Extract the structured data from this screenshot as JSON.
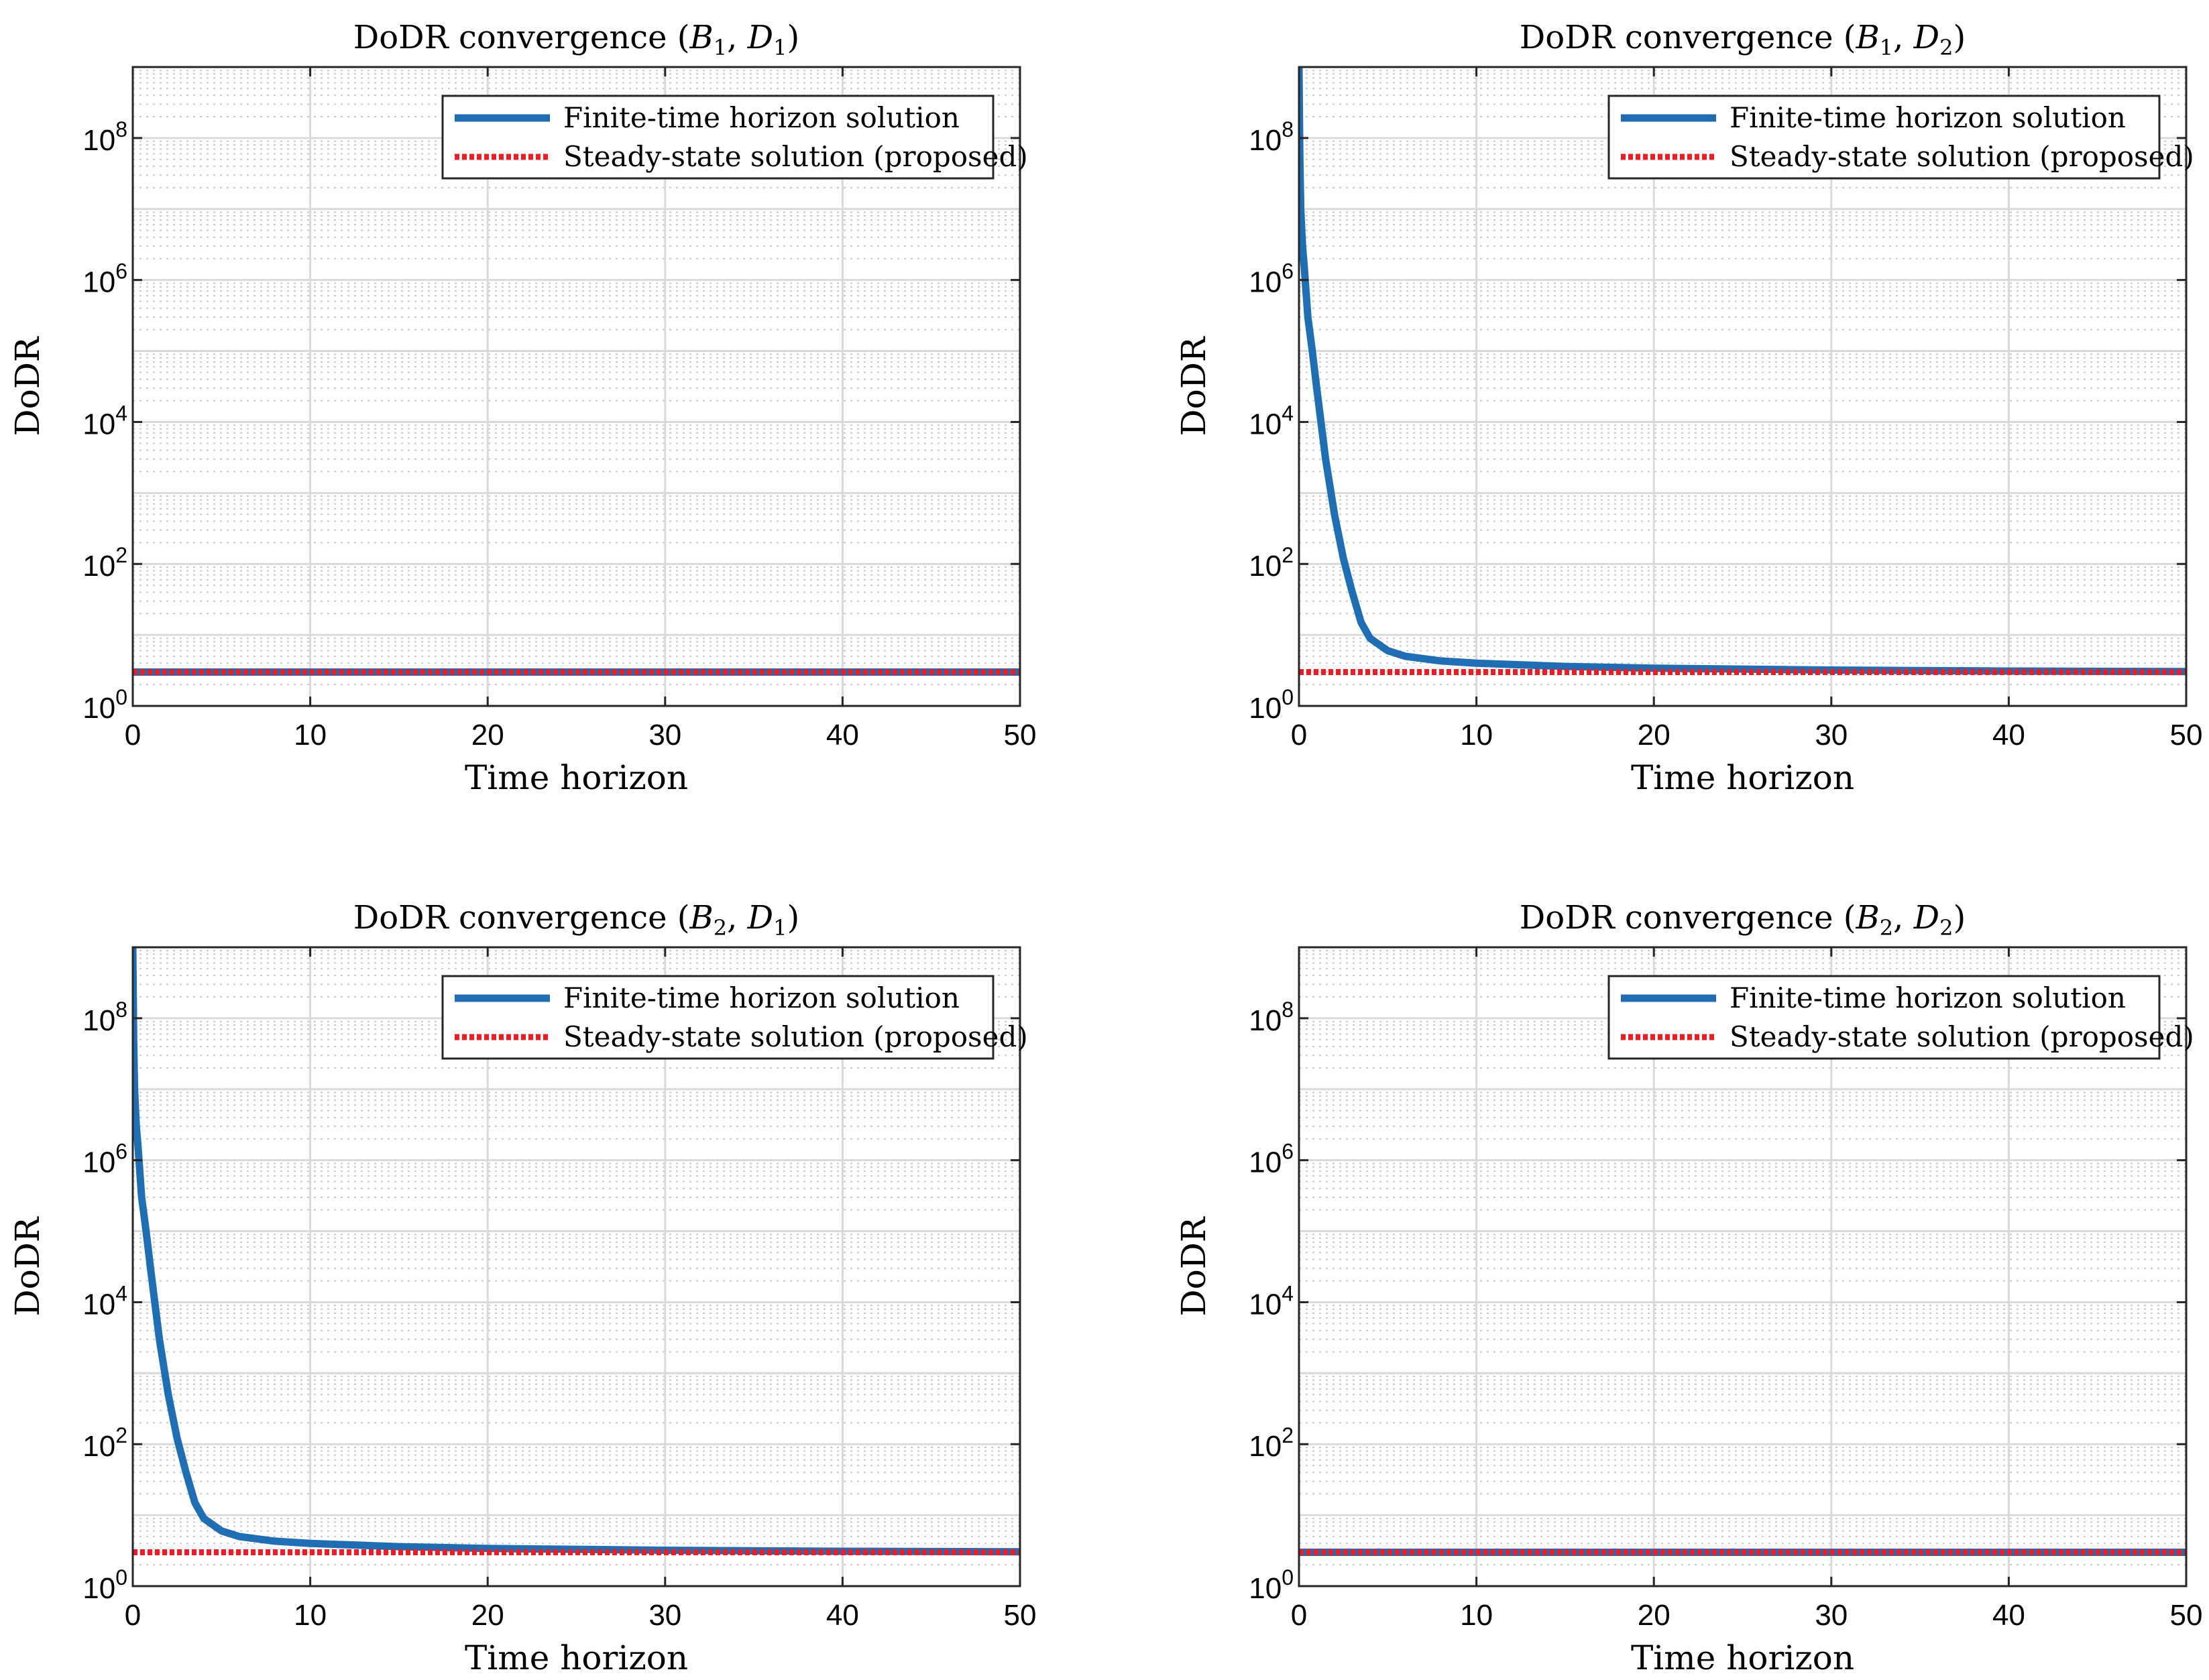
{
  "chart_data": [
    {
      "type": "line",
      "title": {
        "prefix": "DoDR convergence (",
        "b": "B",
        "b_sub": "1",
        "sep": ", ",
        "d": "D",
        "d_sub": "1",
        "suffix": ")"
      },
      "xlabel": "Time horizon",
      "ylabel": "DoDR",
      "xlim": [
        0,
        50
      ],
      "ylim": [
        1,
        1000000000.0
      ],
      "yscale": "log",
      "grid": true,
      "xticks": [
        0,
        10,
        20,
        30,
        40,
        50
      ],
      "xtick_labels": [
        "0",
        "10",
        "20",
        "30",
        "40",
        "50"
      ],
      "yticks": [
        1,
        100,
        10000,
        1000000,
        100000000
      ],
      "ytick_base": "10",
      "ytick_exponents": [
        "0",
        "2",
        "4",
        "6",
        "8"
      ],
      "legend_position": "top-right",
      "series": [
        {
          "name": "Finite-time horizon solution",
          "color": "#1f6eb4",
          "style": "solid",
          "x": [
            0,
            10,
            20,
            30,
            40,
            50
          ],
          "y": [
            3.0,
            3.0,
            3.0,
            3.0,
            3.0,
            3.0
          ]
        },
        {
          "name": "Steady-state solution (proposed)",
          "color": "#ee1c25",
          "style": "dotted",
          "x": [
            0,
            50
          ],
          "y": [
            3.0,
            3.0
          ]
        }
      ]
    },
    {
      "type": "line",
      "title": {
        "prefix": "DoDR convergence (",
        "b": "B",
        "b_sub": "1",
        "sep": ", ",
        "d": "D",
        "d_sub": "2",
        "suffix": ")"
      },
      "xlabel": "Time horizon",
      "ylabel": "DoDR",
      "xlim": [
        0,
        50
      ],
      "ylim": [
        1,
        1000000000.0
      ],
      "yscale": "log",
      "grid": true,
      "xticks": [
        0,
        10,
        20,
        30,
        40,
        50
      ],
      "xtick_labels": [
        "0",
        "10",
        "20",
        "30",
        "40",
        "50"
      ],
      "yticks": [
        1,
        100,
        10000,
        1000000,
        100000000
      ],
      "ytick_base": "10",
      "ytick_exponents": [
        "0",
        "2",
        "4",
        "6",
        "8"
      ],
      "legend_position": "top-right",
      "series": [
        {
          "name": "Finite-time horizon solution",
          "color": "#1f6eb4",
          "style": "solid",
          "x": [
            0,
            0.05,
            0.1,
            0.2,
            0.3,
            0.5,
            0.75,
            1,
            1.5,
            2,
            2.5,
            3,
            3.5,
            4,
            5,
            6,
            8,
            10,
            15,
            20,
            25,
            30,
            40,
            50
          ],
          "y": [
            1000000000.0,
            50000000.0,
            10000000.0,
            3000000.0,
            1500000.0,
            300000.0,
            100000.0,
            30000.0,
            3000,
            500,
            120,
            40,
            15,
            9,
            6,
            5,
            4.3,
            4.0,
            3.6,
            3.4,
            3.3,
            3.2,
            3.1,
            3.05
          ]
        },
        {
          "name": "Steady-state solution (proposed)",
          "color": "#ee1c25",
          "style": "dotted",
          "x": [
            0,
            50
          ],
          "y": [
            3.0,
            3.0
          ]
        }
      ]
    },
    {
      "type": "line",
      "title": {
        "prefix": "DoDR convergence (",
        "b": "B",
        "b_sub": "2",
        "sep": ", ",
        "d": "D",
        "d_sub": "1",
        "suffix": ")"
      },
      "xlabel": "Time horizon",
      "ylabel": "DoDR",
      "xlim": [
        0,
        50
      ],
      "ylim": [
        1,
        1000000000.0
      ],
      "yscale": "log",
      "grid": true,
      "xticks": [
        0,
        10,
        20,
        30,
        40,
        50
      ],
      "xtick_labels": [
        "0",
        "10",
        "20",
        "30",
        "40",
        "50"
      ],
      "yticks": [
        1,
        100,
        10000,
        1000000,
        100000000
      ],
      "ytick_base": "10",
      "ytick_exponents": [
        "0",
        "2",
        "4",
        "6",
        "8"
      ],
      "legend_position": "top-right",
      "series": [
        {
          "name": "Finite-time horizon solution",
          "color": "#1f6eb4",
          "style": "solid",
          "x": [
            0,
            0.05,
            0.1,
            0.2,
            0.3,
            0.5,
            0.75,
            1,
            1.5,
            2,
            2.5,
            3,
            3.5,
            4,
            5,
            6,
            8,
            10,
            15,
            20,
            25,
            30,
            40,
            50
          ],
          "y": [
            1000000000.0,
            50000000.0,
            10000000.0,
            3000000.0,
            1500000.0,
            300000.0,
            100000.0,
            30000.0,
            3000,
            500,
            120,
            40,
            15,
            9,
            6,
            5,
            4.3,
            4.0,
            3.6,
            3.4,
            3.3,
            3.2,
            3.1,
            3.05
          ]
        },
        {
          "name": "Steady-state solution (proposed)",
          "color": "#ee1c25",
          "style": "dotted",
          "x": [
            0,
            50
          ],
          "y": [
            3.0,
            3.0
          ]
        }
      ]
    },
    {
      "type": "line",
      "title": {
        "prefix": "DoDR convergence (",
        "b": "B",
        "b_sub": "2",
        "sep": ", ",
        "d": "D",
        "d_sub": "2",
        "suffix": ")"
      },
      "xlabel": "Time horizon",
      "ylabel": "DoDR",
      "xlim": [
        0,
        50
      ],
      "ylim": [
        1,
        1000000000.0
      ],
      "yscale": "log",
      "grid": true,
      "xticks": [
        0,
        10,
        20,
        30,
        40,
        50
      ],
      "xtick_labels": [
        "0",
        "10",
        "20",
        "30",
        "40",
        "50"
      ],
      "yticks": [
        1,
        100,
        10000,
        1000000,
        100000000
      ],
      "ytick_base": "10",
      "ytick_exponents": [
        "0",
        "2",
        "4",
        "6",
        "8"
      ],
      "legend_position": "top-right",
      "series": [
        {
          "name": "Finite-time horizon solution",
          "color": "#1f6eb4",
          "style": "solid",
          "x": [
            0,
            10,
            20,
            30,
            40,
            50
          ],
          "y": [
            3.0,
            3.0,
            3.0,
            3.0,
            3.0,
            3.0
          ]
        },
        {
          "name": "Steady-state solution (proposed)",
          "color": "#ee1c25",
          "style": "dotted",
          "x": [
            0,
            50
          ],
          "y": [
            3.0,
            3.0
          ]
        }
      ]
    }
  ]
}
